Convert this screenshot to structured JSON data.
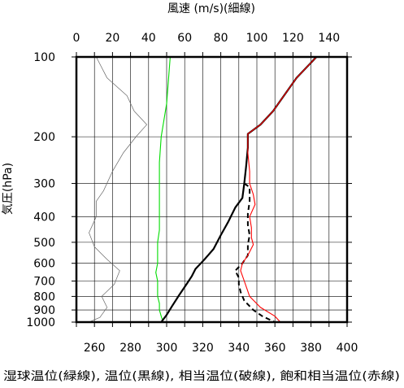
{
  "chart_data": {
    "type": "line",
    "top_axis": {
      "title": "風速 (m/s)(細線)",
      "range": [
        0,
        150
      ],
      "ticks": [
        0,
        20,
        40,
        60,
        80,
        100,
        120,
        140
      ],
      "minor_step": 10
    },
    "bottom_axis": {
      "title": "湿球温位(緑線), 温位(黒線), 相当温位(破線), 飽和相当温位(赤線)",
      "range": [
        250,
        400
      ],
      "ticks": [
        260,
        280,
        300,
        320,
        340,
        360,
        380,
        400
      ]
    },
    "left_axis": {
      "title": "気圧(hPa)",
      "scale": "log",
      "range": [
        1000,
        100
      ],
      "ticks": [
        100,
        200,
        300,
        400,
        500,
        600,
        700,
        800,
        900,
        1000
      ]
    },
    "grid": true,
    "series": [
      {
        "axis": "wind",
        "color": "#666666",
        "style": "thin",
        "points": [
          [
            11,
            100
          ],
          [
            17,
            120
          ],
          [
            28,
            140
          ],
          [
            32,
            160
          ],
          [
            39,
            180
          ],
          [
            33,
            200
          ],
          [
            26,
            230
          ],
          [
            20,
            270
          ],
          [
            15,
            320
          ],
          [
            11,
            350
          ],
          [
            11,
            400
          ],
          [
            7,
            460
          ],
          [
            10,
            520
          ],
          [
            17,
            580
          ],
          [
            24,
            640
          ],
          [
            21,
            720
          ],
          [
            14,
            800
          ],
          [
            17,
            880
          ],
          [
            13,
            960
          ],
          [
            7,
            1000
          ]
        ]
      },
      {
        "axis": "temp",
        "color": "#00dd00",
        "style": "solid",
        "points": [
          [
            302,
            100
          ],
          [
            300,
            150
          ],
          [
            297,
            200
          ],
          [
            296,
            250
          ],
          [
            296,
            300
          ],
          [
            296,
            350
          ],
          [
            296,
            400
          ],
          [
            296,
            450
          ],
          [
            295,
            500
          ],
          [
            295,
            550
          ],
          [
            295,
            600
          ],
          [
            294,
            650
          ],
          [
            295,
            700
          ],
          [
            295,
            750
          ],
          [
            295,
            800
          ],
          [
            296,
            850
          ],
          [
            296,
            900
          ],
          [
            297,
            950
          ],
          [
            298,
            1000
          ]
        ]
      },
      {
        "axis": "temp",
        "color": "#000000",
        "style": "bold",
        "points": [
          [
            383,
            100
          ],
          [
            372,
            120
          ],
          [
            365,
            140
          ],
          [
            359,
            160
          ],
          [
            352,
            180
          ],
          [
            345,
            195
          ],
          [
            345,
            220
          ],
          [
            344,
            260
          ],
          [
            343,
            300
          ],
          [
            342,
            340
          ],
          [
            338,
            370
          ],
          [
            334,
            420
          ],
          [
            330,
            470
          ],
          [
            326,
            530
          ],
          [
            321,
            580
          ],
          [
            316,
            630
          ],
          [
            314,
            670
          ],
          [
            311,
            720
          ],
          [
            307,
            790
          ],
          [
            303,
            870
          ],
          [
            300,
            940
          ],
          [
            297,
            1000
          ]
        ]
      },
      {
        "axis": "temp",
        "color": "#000000",
        "style": "dashed",
        "points": [
          [
            343,
            300
          ],
          [
            346,
            310
          ],
          [
            346,
            350
          ],
          [
            345,
            390
          ],
          [
            345,
            430
          ],
          [
            346,
            470
          ],
          [
            345,
            510
          ],
          [
            345,
            560
          ],
          [
            342,
            600
          ],
          [
            338,
            640
          ],
          [
            340,
            680
          ],
          [
            340,
            720
          ],
          [
            341,
            770
          ],
          [
            343,
            830
          ],
          [
            348,
            900
          ],
          [
            353,
            950
          ],
          [
            360,
            1000
          ]
        ]
      },
      {
        "axis": "temp",
        "color": "#ff0000",
        "style": "solid",
        "points": [
          [
            383,
            100
          ],
          [
            372,
            120
          ],
          [
            365,
            140
          ],
          [
            359,
            160
          ],
          [
            352,
            180
          ],
          [
            345,
            195
          ],
          [
            345,
            230
          ],
          [
            346,
            270
          ],
          [
            346,
            300
          ],
          [
            348,
            330
          ],
          [
            349,
            360
          ],
          [
            346,
            400
          ],
          [
            347,
            440
          ],
          [
            347,
            480
          ],
          [
            348,
            510
          ],
          [
            345,
            560
          ],
          [
            342,
            600
          ],
          [
            341,
            640
          ],
          [
            343,
            700
          ],
          [
            346,
            800
          ],
          [
            352,
            880
          ],
          [
            360,
            950
          ],
          [
            363,
            1000
          ]
        ]
      }
    ]
  }
}
